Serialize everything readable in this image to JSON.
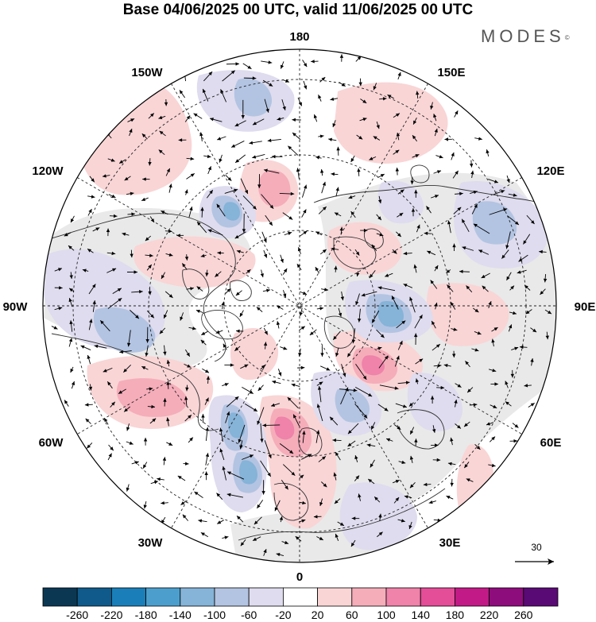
{
  "header": {
    "title": "Base 04/06/2025 00 UTC, valid 11/06/2025 00 UTC",
    "brand": "MODES",
    "brand_mark": "©"
  },
  "map": {
    "projection": "north-polar-stereographic",
    "longitude_labels": [
      "180",
      "150E",
      "120E",
      "90E",
      "60E",
      "30E",
      "0",
      "30W",
      "60W",
      "90W",
      "120W",
      "150W"
    ],
    "reference_vector_label": "30"
  },
  "colorbar": {
    "colors": [
      "#0b3752",
      "#0f5a8a",
      "#1a7fb9",
      "#4c9fcd",
      "#86b3d8",
      "#b3c4e2",
      "#dedcee",
      "#ffffff",
      "#f9d5d6",
      "#f5adba",
      "#ef83a9",
      "#e44d98",
      "#c21a86",
      "#8e0d7c",
      "#5a0a74"
    ],
    "labels": [
      "-260",
      "-220",
      "-180",
      "-140",
      "-100",
      "-60",
      "-20",
      "20",
      "60",
      "100",
      "140",
      "180",
      "220",
      "260"
    ]
  },
  "icons": [
    "north-pole-map",
    "vector-arrow-icon"
  ]
}
